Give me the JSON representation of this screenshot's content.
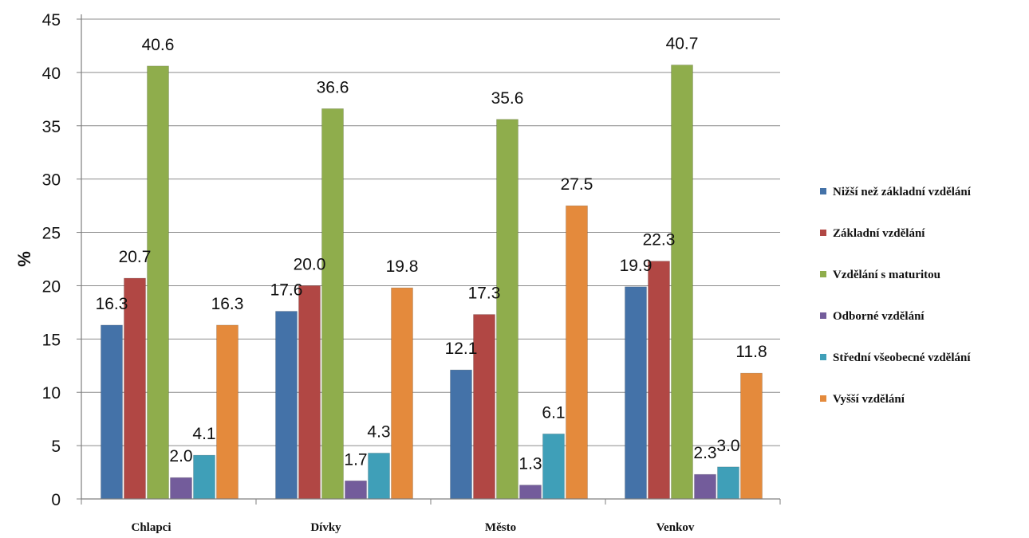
{
  "chart_data": {
    "type": "bar",
    "categories": [
      "Chlapci",
      "Dívky",
      "Město",
      "Venkov"
    ],
    "ylabel": "%",
    "ylim": [
      0,
      45
    ],
    "yticks": [
      0,
      5,
      10,
      15,
      20,
      25,
      30,
      35,
      40,
      45
    ],
    "grid": true,
    "legend_position": "right",
    "series": [
      {
        "name": "Nižší než základní vzdělání",
        "color": "#4472a8",
        "values": [
          16.3,
          17.6,
          12.1,
          19.9
        ],
        "labels": [
          "16.3",
          "17.6",
          "12.1",
          "19.9"
        ]
      },
      {
        "name": "Základní vzdělání",
        "color": "#b14744",
        "values": [
          20.7,
          20.0,
          17.3,
          22.3
        ],
        "labels": [
          "20.7",
          "20.0",
          "17.3",
          "22.3"
        ]
      },
      {
        "name": "Vzdělání s maturitou",
        "color": "#8fad4c",
        "values": [
          40.6,
          36.6,
          35.6,
          40.7
        ],
        "labels": [
          "40.6",
          "36.6",
          "35.6",
          "40.7"
        ]
      },
      {
        "name": "Odborné vzdělání",
        "color": "#735c9b",
        "values": [
          2.0,
          1.7,
          1.3,
          2.3
        ],
        "labels": [
          "2.0",
          "1.7",
          "1.3",
          "2.3"
        ]
      },
      {
        "name": "Střední všeobecné vzdělání",
        "color": "#3f9fb8",
        "values": [
          4.1,
          4.3,
          6.1,
          3.0
        ],
        "labels": [
          "4.1",
          "4.3",
          "6.1",
          "3.0"
        ]
      },
      {
        "name": "Vyšší vzdělání",
        "color": "#e48a3c",
        "values": [
          16.3,
          19.8,
          27.5,
          11.8
        ],
        "labels": [
          "16.3",
          "19.8",
          "27.5",
          "11.8"
        ]
      }
    ]
  }
}
